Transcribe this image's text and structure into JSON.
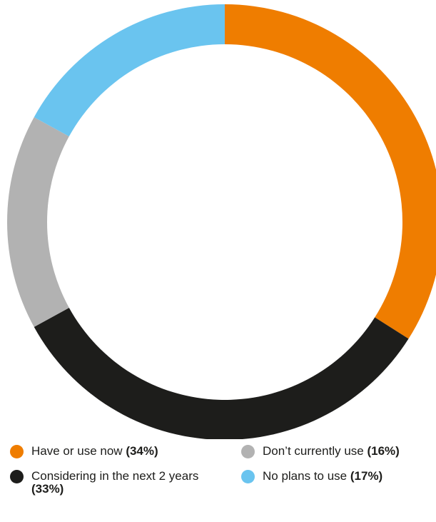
{
  "chart_data": {
    "type": "pie",
    "donut": true,
    "title": "",
    "categories": [
      "Have or use now",
      "Considering in the next 2 years",
      "Don’t currently use",
      "No plans to use"
    ],
    "values": [
      34,
      33,
      16,
      17
    ],
    "value_labels": [
      "(34%)",
      "(33%)",
      "(16%)",
      "(17%)"
    ],
    "colors": [
      "#ef7d00",
      "#1d1d1b",
      "#b2b2b2",
      "#6ac4ef"
    ],
    "start_angle_deg": 0,
    "direction": "clockwise",
    "legend_position": "bottom"
  },
  "legend": {
    "items": [
      {
        "label": "Have or use now",
        "pct": "(34%)",
        "color": "#ef7d00"
      },
      {
        "label": "Considering in the next 2 years",
        "pct": "(33%)",
        "color": "#1d1d1b"
      },
      {
        "label": "Don’t currently use",
        "pct": "(16%)",
        "color": "#b2b2b2"
      },
      {
        "label": "No plans to use",
        "pct": "(17%)",
        "color": "#6ac4ef"
      }
    ]
  }
}
